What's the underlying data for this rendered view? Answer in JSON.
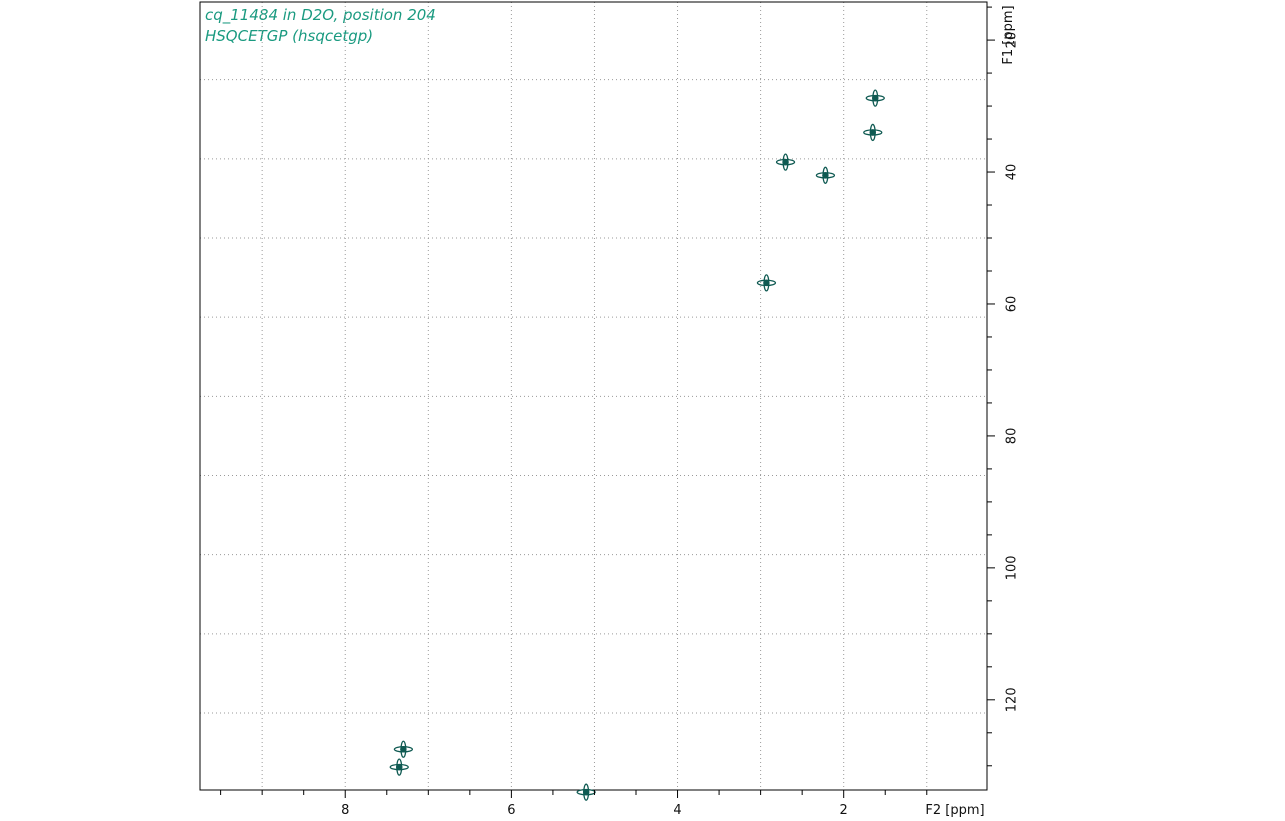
{
  "chart_data": {
    "type": "scatter",
    "title_lines": [
      "cq_11484 in D2O, position 204",
      "HSQCETGP (hsqcetgp)"
    ],
    "xlabel": "F2 [ppm]",
    "ylabel": "F1 [ppm]",
    "xlim": [
      9.6,
      0.6
    ],
    "ylim": [
      14,
      134
    ],
    "x_reversed": true,
    "x_major_ticks": [
      8,
      6,
      4,
      2
    ],
    "x_minor_step": 0.5,
    "x_grid": [
      9.0,
      8.0,
      7.0,
      6.0,
      5.0,
      4.0,
      3.0,
      2.0,
      1.0
    ],
    "y_major_ticks": [
      20,
      40,
      60,
      80,
      100,
      120
    ],
    "y_minor_step": 5,
    "y_grid": [
      26,
      38,
      50,
      62,
      74,
      86,
      98,
      110,
      122
    ],
    "grid": true,
    "grid_style": "dotted",
    "color": "#0f5a52",
    "peaks": [
      {
        "x": 1.62,
        "y": 28.8
      },
      {
        "x": 1.65,
        "y": 34.0
      },
      {
        "x": 2.7,
        "y": 38.5
      },
      {
        "x": 2.22,
        "y": 40.5
      },
      {
        "x": 2.93,
        "y": 56.8
      },
      {
        "x": 7.3,
        "y": 127.5
      },
      {
        "x": 7.35,
        "y": 130.2
      },
      {
        "x": 5.1,
        "y": 134.0
      }
    ]
  }
}
